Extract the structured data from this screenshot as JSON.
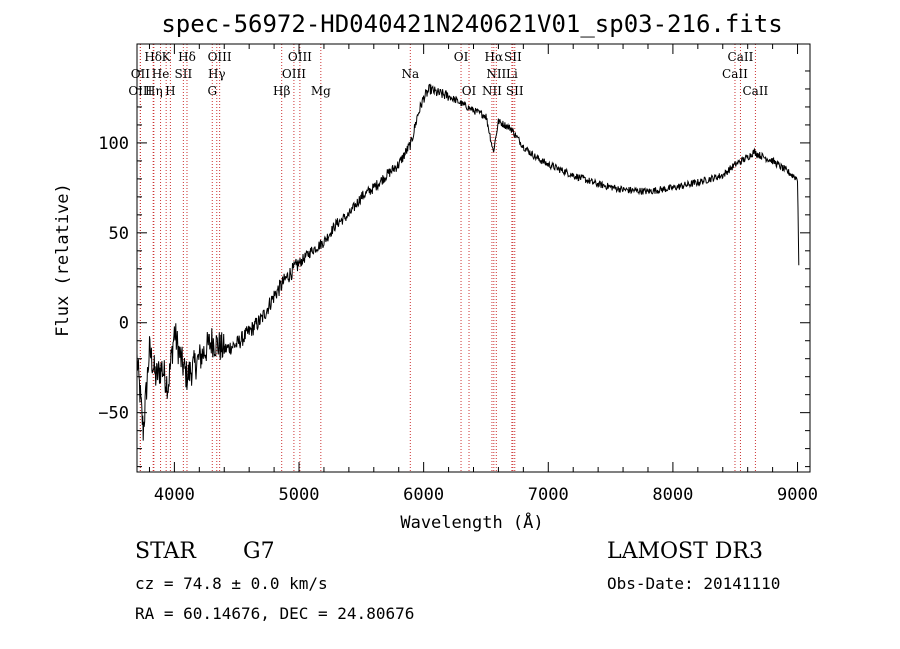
{
  "chart_data": {
    "type": "line",
    "title": "spec-56972-HD040421N240621V01_sp03-216.fits",
    "xlabel": "Wavelength (Å)",
    "ylabel": "Flux (relative)",
    "xlim": [
      3700,
      9100
    ],
    "ylim": [
      -83,
      155
    ],
    "xticks": [
      4000,
      5000,
      6000,
      7000,
      8000,
      9000
    ],
    "yticks": [
      -50,
      0,
      50,
      100
    ],
    "grid": false,
    "series": [
      {
        "color": "#000000",
        "x": [
          3700,
          3750,
          3800,
          3850,
          3900,
          3950,
          4000,
          4050,
          4100,
          4150,
          4200,
          4300,
          4400,
          4500,
          4600,
          4700,
          4800,
          4900,
          5000,
          5100,
          5200,
          5300,
          5400,
          5500,
          5600,
          5700,
          5800,
          5900,
          5950,
          6000,
          6050,
          6100,
          6200,
          6300,
          6400,
          6500,
          6560,
          6600,
          6700,
          6800,
          6900,
          7000,
          7200,
          7400,
          7600,
          7800,
          8000,
          8200,
          8400,
          8500,
          8600,
          8650,
          8700,
          8800,
          8900,
          9000,
          9010
        ],
        "y": [
          -20,
          -60,
          -15,
          -30,
          -25,
          -35,
          -5,
          -20,
          -30,
          -25,
          -20,
          -10,
          -15,
          -12,
          -5,
          2,
          15,
          25,
          33,
          40,
          45,
          55,
          60,
          70,
          75,
          82,
          88,
          100,
          115,
          125,
          130,
          128,
          126,
          122,
          118,
          115,
          95,
          112,
          108,
          98,
          92,
          88,
          82,
          77,
          74,
          73,
          75,
          78,
          82,
          88,
          92,
          95,
          93,
          90,
          85,
          80,
          32
        ]
      }
    ],
    "line_labels": [
      {
        "label": "Hδ",
        "x": 4101,
        "row": 1,
        "color": "#cc3333"
      },
      {
        "label": "Hδ",
        "x": 3830,
        "row": 1,
        "color": "#cc3333"
      },
      {
        "label": "K",
        "x": 3934,
        "row": 1,
        "color": "#cc3333"
      },
      {
        "label": "OIII",
        "x": 4363,
        "row": 1,
        "color": "#cc3333"
      },
      {
        "label": "OIII",
        "x": 5007,
        "row": 1,
        "color": "#cc3333"
      },
      {
        "label": "OI",
        "x": 6300,
        "row": 1,
        "color": "#cc3333"
      },
      {
        "label": "Hα",
        "x": 6563,
        "row": 1,
        "color": "#cc3333"
      },
      {
        "label": "SII",
        "x": 6716,
        "row": 1,
        "color": "#cc3333"
      },
      {
        "label": "CaII",
        "x": 8542,
        "row": 1,
        "color": "#cc3333"
      },
      {
        "label": "OII",
        "x": 3727,
        "row": 2,
        "color": "#cc3333"
      },
      {
        "label": "He",
        "x": 3889,
        "row": 2,
        "color": "#cc3333"
      },
      {
        "label": "SII",
        "x": 4072,
        "row": 2,
        "color": "#cc3333"
      },
      {
        "label": "Hγ",
        "x": 4340,
        "row": 2,
        "color": "#cc3333"
      },
      {
        "label": "OIII",
        "x": 4959,
        "row": 2,
        "color": "#cc3333"
      },
      {
        "label": "Na",
        "x": 5893,
        "row": 2,
        "color": "#cc3333"
      },
      {
        "label": "NII",
        "x": 6583,
        "row": 2,
        "color": "#cc3333"
      },
      {
        "label": "Li",
        "x": 6708,
        "row": 2,
        "color": "#cc3333"
      },
      {
        "label": "CaII",
        "x": 8498,
        "row": 2,
        "color": "#cc3333"
      },
      {
        "label": "OIII",
        "x": 3727,
        "row": 3,
        "color": "#cc3333"
      },
      {
        "label": "Hη",
        "x": 3835,
        "row": 3,
        "color": "#cc3333"
      },
      {
        "label": "H",
        "x": 3968,
        "row": 3,
        "color": "#cc3333"
      },
      {
        "label": "G",
        "x": 4304,
        "row": 3,
        "color": "#cc3333"
      },
      {
        "label": "Hβ",
        "x": 4861,
        "row": 3,
        "color": "#cc3333"
      },
      {
        "label": "Mg",
        "x": 5175,
        "row": 3,
        "color": "#cc3333"
      },
      {
        "label": "OI",
        "x": 6364,
        "row": 3,
        "color": "#cc3333"
      },
      {
        "label": "NII",
        "x": 6548,
        "row": 3,
        "color": "#cc3333"
      },
      {
        "label": "SII",
        "x": 6731,
        "row": 3,
        "color": "#cc3333"
      },
      {
        "label": "CaII",
        "x": 8662,
        "row": 3,
        "color": "#cc3333"
      }
    ]
  },
  "info": {
    "object_class": "STAR",
    "subclass": "G7",
    "survey": "LAMOST DR3",
    "cz": "cz = 74.8 ± 0.0 km/s",
    "obs_date": "Obs-Date: 20141110",
    "coords": "RA =  60.14676, DEC =  24.80676"
  }
}
